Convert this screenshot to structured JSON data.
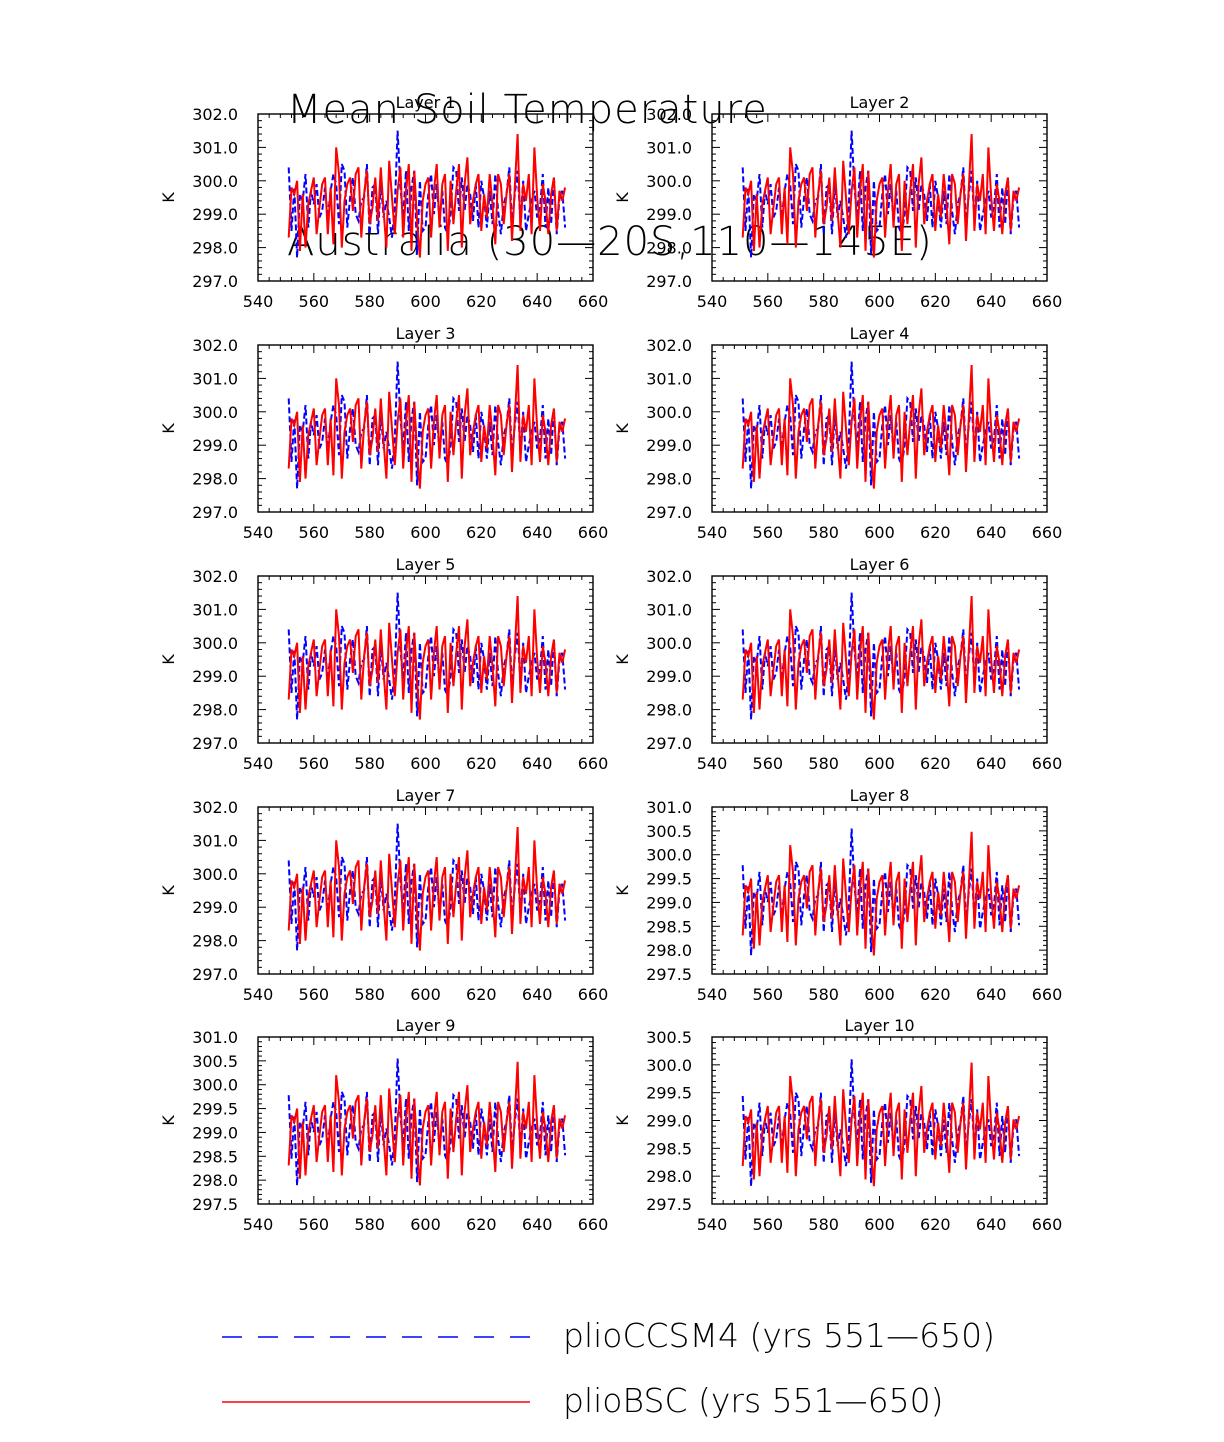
{
  "title": {
    "line1": "Mean Soil Temperature",
    "line2": "Australia (30—20S,110—145E)"
  },
  "legend": [
    {
      "name": "plioCCSM4 (yrs 551—650)",
      "color": "#0000ff",
      "style": "dashed"
    },
    {
      "name": "plioBSC (yrs 551—650)",
      "color": "#ff0000",
      "style": "solid"
    }
  ],
  "chart_data": [
    {
      "type": "line",
      "title": "Layer 1",
      "ylabel": "K",
      "xlim": [
        540,
        660
      ],
      "ylim": [
        297,
        302
      ],
      "xticks": [
        "540",
        "560",
        "580",
        "600",
        "620",
        "640",
        "660"
      ],
      "yticks": [
        "297.0",
        "298.0",
        "299.0",
        "300.0",
        "301.0",
        "302.0"
      ]
    },
    {
      "type": "line",
      "title": "Layer 2",
      "ylabel": "K",
      "xlim": [
        540,
        660
      ],
      "ylim": [
        297,
        302
      ],
      "xticks": [
        "540",
        "560",
        "580",
        "600",
        "620",
        "640",
        "660"
      ],
      "yticks": [
        "297.0",
        "298.0",
        "299.0",
        "300.0",
        "301.0",
        "302.0"
      ]
    },
    {
      "type": "line",
      "title": "Layer 3",
      "ylabel": "K",
      "xlim": [
        540,
        660
      ],
      "ylim": [
        297,
        302
      ],
      "xticks": [
        "540",
        "560",
        "580",
        "600",
        "620",
        "640",
        "660"
      ],
      "yticks": [
        "297.0",
        "298.0",
        "299.0",
        "300.0",
        "301.0",
        "302.0"
      ]
    },
    {
      "type": "line",
      "title": "Layer 4",
      "ylabel": "K",
      "xlim": [
        540,
        660
      ],
      "ylim": [
        297,
        302
      ],
      "xticks": [
        "540",
        "560",
        "580",
        "600",
        "620",
        "640",
        "660"
      ],
      "yticks": [
        "297.0",
        "298.0",
        "299.0",
        "300.0",
        "301.0",
        "302.0"
      ]
    },
    {
      "type": "line",
      "title": "Layer 5",
      "ylabel": "K",
      "xlim": [
        540,
        660
      ],
      "ylim": [
        297,
        302
      ],
      "xticks": [
        "540",
        "560",
        "580",
        "600",
        "620",
        "640",
        "660"
      ],
      "yticks": [
        "297.0",
        "298.0",
        "299.0",
        "300.0",
        "301.0",
        "302.0"
      ]
    },
    {
      "type": "line",
      "title": "Layer 6",
      "ylabel": "K",
      "xlim": [
        540,
        660
      ],
      "ylim": [
        297,
        302
      ],
      "xticks": [
        "540",
        "560",
        "580",
        "600",
        "620",
        "640",
        "660"
      ],
      "yticks": [
        "297.0",
        "298.0",
        "299.0",
        "300.0",
        "301.0",
        "302.0"
      ]
    },
    {
      "type": "line",
      "title": "Layer 7",
      "ylabel": "K",
      "xlim": [
        540,
        660
      ],
      "ylim": [
        297,
        302
      ],
      "xticks": [
        "540",
        "560",
        "580",
        "600",
        "620",
        "640",
        "660"
      ],
      "yticks": [
        "297.0",
        "298.0",
        "299.0",
        "300.0",
        "301.0",
        "302.0"
      ]
    },
    {
      "type": "line",
      "title": "Layer 8",
      "ylabel": "K",
      "xlim": [
        540,
        660
      ],
      "ylim": [
        297.5,
        301
      ],
      "xticks": [
        "540",
        "560",
        "580",
        "600",
        "620",
        "640",
        "660"
      ],
      "yticks": [
        "297.5",
        "298.0",
        "298.5",
        "299.0",
        "299.5",
        "300.0",
        "300.5",
        "301.0"
      ]
    },
    {
      "type": "line",
      "title": "Layer 9",
      "ylabel": "K",
      "xlim": [
        540,
        660
      ],
      "ylim": [
        297.5,
        301
      ],
      "xticks": [
        "540",
        "560",
        "580",
        "600",
        "620",
        "640",
        "660"
      ],
      "yticks": [
        "297.5",
        "298.0",
        "298.5",
        "299.0",
        "299.5",
        "300.0",
        "300.5",
        "301.0"
      ]
    },
    {
      "type": "line",
      "title": "Layer 10",
      "ylabel": "K",
      "xlim": [
        540,
        660
      ],
      "ylim": [
        297.5,
        300.5
      ],
      "xticks": [
        "540",
        "560",
        "580",
        "600",
        "620",
        "640",
        "660"
      ],
      "yticks": [
        "297.5",
        "298.0",
        "298.5",
        "299.0",
        "299.5",
        "300.0",
        "300.5"
      ]
    }
  ],
  "series_base": {
    "x_start": 551,
    "plioCCSM4": [
      300.4,
      298.5,
      299.8,
      297.7,
      299.6,
      299.4,
      300.2,
      298.6,
      299.7,
      299.3,
      299.9,
      298.9,
      299.1,
      299.8,
      298.9,
      299.7,
      300.2,
      299.9,
      298.7,
      300.5,
      300.3,
      298.6,
      299.5,
      300.1,
      299.0,
      298.8,
      299.4,
      299.5,
      300.5,
      298.4,
      299.8,
      299.9,
      298.4,
      300.0,
      298.9,
      299.4,
      298.9,
      298.3,
      299.2,
      301.5,
      299.8,
      298.9,
      300.3,
      298.5,
      299.8,
      300.3,
      297.8,
      300.0,
      298.5,
      298.6,
      299.6,
      300.2,
      299.0,
      299.9,
      298.8,
      299.7,
      298.6,
      298.4,
      299.0,
      300.4,
      300.3,
      299.1,
      300.1,
      299.1,
      299.9,
      299.6,
      298.8,
      299.9,
      298.6,
      300.0,
      299.5,
      298.6,
      299.7,
      298.7,
      300.2,
      299.1,
      298.4,
      299.3,
      299.6,
      300.4,
      298.7,
      299.6,
      300.3,
      298.8,
      300.0,
      298.5,
      299.0,
      299.4,
      299.7,
      298.9,
      299.2,
      300.2,
      298.6,
      299.8,
      298.7,
      300.1,
      298.4,
      299.5,
      299.7,
      298.6
    ],
    "plioBSC": [
      298.3,
      299.8,
      299.6,
      300.0,
      297.9,
      299.6,
      298.0,
      299.3,
      299.7,
      300.1,
      298.4,
      299.2,
      299.9,
      300.1,
      298.4,
      299.8,
      298.1,
      301.0,
      300.2,
      298.0,
      299.4,
      299.9,
      300.1,
      299.1,
      300.2,
      300.4,
      298.3,
      299.6,
      300.3,
      298.7,
      299.2,
      300.1,
      298.8,
      300.4,
      299.1,
      298.0,
      300.6,
      299.5,
      298.4,
      299.7,
      300.4,
      298.3,
      299.7,
      300.5,
      297.9,
      300.3,
      298.8,
      297.7,
      299.4,
      299.9,
      300.1,
      298.3,
      299.7,
      300.5,
      298.6,
      299.9,
      300.2,
      297.9,
      300.0,
      298.7,
      299.7,
      300.5,
      298.0,
      299.9,
      300.7,
      298.7,
      299.4,
      299.9,
      300.2,
      298.5,
      299.6,
      298.9,
      300.2,
      299.3,
      298.1,
      300.2,
      299.9,
      298.7,
      299.6,
      300.2,
      298.2,
      299.8,
      301.4,
      298.5,
      299.9,
      299.4,
      300.2,
      298.4,
      301.0,
      299.5,
      298.5,
      299.9,
      299.4,
      298.4,
      299.6,
      300.1,
      298.5,
      299.7,
      299.4,
      299.8
    ]
  }
}
